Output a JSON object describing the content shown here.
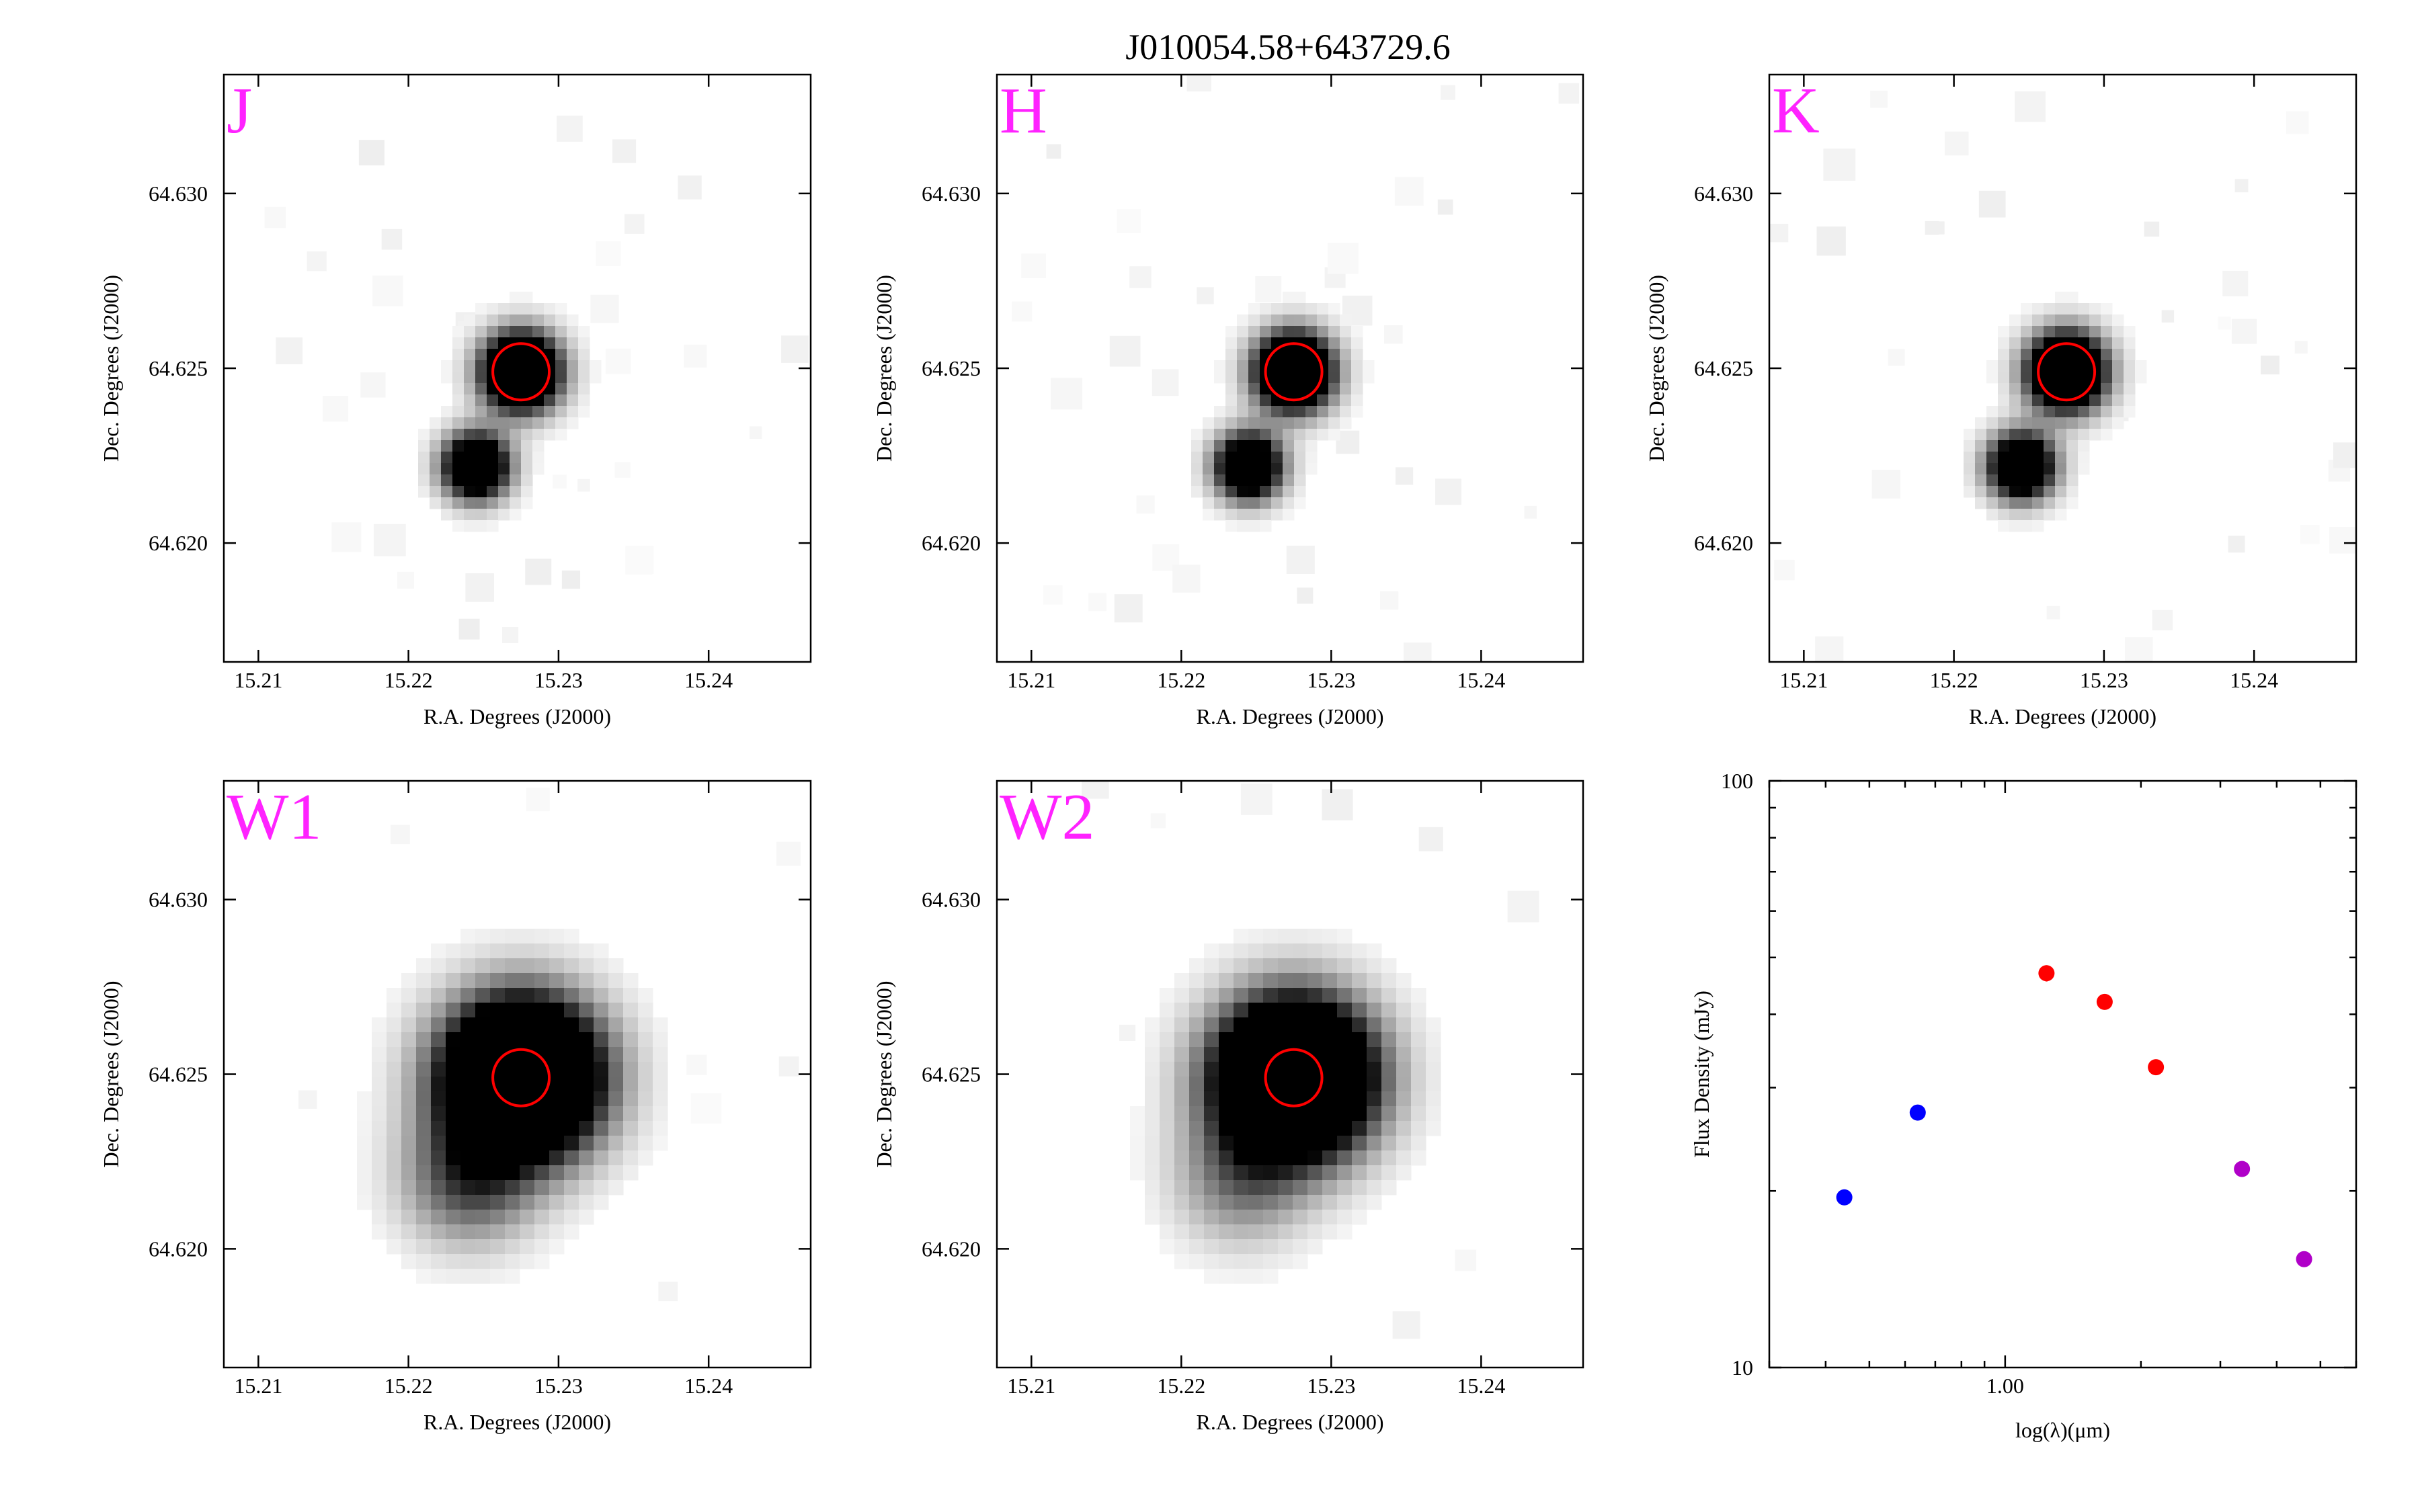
{
  "title": "J010054.58+643729.6",
  "colors": {
    "band_label": "#ff22ff",
    "aperture": "#ff0000",
    "sed_blue": "#0000ff",
    "sed_red": "#ff0000",
    "sed_purple": "#b000c8"
  },
  "chart_data": [
    {
      "type": "heatmap",
      "band": "J",
      "xlabel": "R.A. Degrees (J2000)",
      "ylabel": "Dec. Degrees (J2000)",
      "xlim": [
        15.2077,
        15.2468
      ],
      "ylim": [
        64.6166,
        64.6334
      ],
      "xticks": [
        "15.21",
        "15.22",
        "15.23",
        "15.24"
      ],
      "yticks": [
        "64.620",
        "64.625",
        "64.630"
      ],
      "sources": [
        {
          "ra": 15.2275,
          "dec": 64.6249,
          "sigma": 0.00075,
          "amp": 2.4
        },
        {
          "ra": 15.2245,
          "dec": 64.6222,
          "sigma": 0.00065,
          "amp": 1.9
        }
      ],
      "aperture": {
        "ra": 15.2275,
        "dec": 64.6249,
        "radius_arcsec": 3
      }
    },
    {
      "type": "heatmap",
      "band": "H",
      "xlabel": "R.A. Degrees (J2000)",
      "ylabel": "Dec. Degrees (J2000)",
      "xlim": [
        15.2077,
        15.2468
      ],
      "ylim": [
        64.6166,
        64.6334
      ],
      "xticks": [
        "15.21",
        "15.22",
        "15.23",
        "15.24"
      ],
      "yticks": [
        "64.620",
        "64.625",
        "64.630"
      ],
      "sources": [
        {
          "ra": 15.2275,
          "dec": 64.6249,
          "sigma": 0.00075,
          "amp": 2.4
        },
        {
          "ra": 15.2245,
          "dec": 64.6222,
          "sigma": 0.00065,
          "amp": 1.9
        }
      ],
      "aperture": {
        "ra": 15.2275,
        "dec": 64.6249,
        "radius_arcsec": 3
      }
    },
    {
      "type": "heatmap",
      "band": "K",
      "xlabel": "R.A. Degrees (J2000)",
      "ylabel": "Dec. Degrees (J2000)",
      "xlim": [
        15.2077,
        15.2468
      ],
      "ylim": [
        64.6166,
        64.6334
      ],
      "xticks": [
        "15.21",
        "15.22",
        "15.23",
        "15.24"
      ],
      "yticks": [
        "64.620",
        "64.625",
        "64.630"
      ],
      "sources": [
        {
          "ra": 15.2275,
          "dec": 64.6249,
          "sigma": 0.00075,
          "amp": 2.4
        },
        {
          "ra": 15.2245,
          "dec": 64.6222,
          "sigma": 0.00065,
          "amp": 1.9
        }
      ],
      "aperture": {
        "ra": 15.2275,
        "dec": 64.6249,
        "radius_arcsec": 3
      }
    },
    {
      "type": "heatmap",
      "band": "W1",
      "xlabel": "R.A. Degrees (J2000)",
      "ylabel": "Dec. Degrees (J2000)",
      "xlim": [
        15.2077,
        15.2468
      ],
      "ylim": [
        64.6166,
        64.6334
      ],
      "xticks": [
        "15.21",
        "15.22",
        "15.23",
        "15.24"
      ],
      "yticks": [
        "64.620",
        "64.625",
        "64.630"
      ],
      "sources": [
        {
          "ra": 15.2275,
          "dec": 64.6249,
          "sigma": 0.0015,
          "amp": 3.0
        },
        {
          "ra": 15.224,
          "dec": 64.622,
          "sigma": 0.0013,
          "amp": 0.7
        }
      ],
      "aperture": {
        "ra": 15.2275,
        "dec": 64.6249,
        "radius_arcsec": 3
      }
    },
    {
      "type": "heatmap",
      "band": "W2",
      "xlabel": "R.A. Degrees (J2000)",
      "ylabel": "Dec. Degrees (J2000)",
      "xlim": [
        15.2077,
        15.2468
      ],
      "ylim": [
        64.6166,
        64.6334
      ],
      "xticks": [
        "15.21",
        "15.22",
        "15.23",
        "15.24"
      ],
      "yticks": [
        "64.620",
        "64.625",
        "64.630"
      ],
      "sources": [
        {
          "ra": 15.2275,
          "dec": 64.6249,
          "sigma": 0.0015,
          "amp": 3.0
        },
        {
          "ra": 15.224,
          "dec": 64.622,
          "sigma": 0.0013,
          "amp": 0.5
        }
      ],
      "aperture": {
        "ra": 15.2275,
        "dec": 64.6249,
        "radius_arcsec": 3
      }
    },
    {
      "type": "scatter",
      "scale": "log-log",
      "xlabel": "log(λ)(μm)",
      "ylabel": "Flux Density (mJy)",
      "xlim": [
        0.3,
        6.0
      ],
      "ylim": [
        10,
        100
      ],
      "xticks": [
        {
          "value": 1.0,
          "label": "1.00"
        }
      ],
      "yticks": [
        {
          "value": 10,
          "label": "10"
        },
        {
          "value": 100,
          "label": "100"
        }
      ],
      "series": [
        {
          "color": "#0000ff",
          "points": [
            {
              "x": 0.44,
              "y": 19.5
            },
            {
              "x": 0.64,
              "y": 27.2
            }
          ]
        },
        {
          "color": "#ff0000",
          "points": [
            {
              "x": 1.235,
              "y": 47.0,
              "err": 1.5
            },
            {
              "x": 1.662,
              "y": 42.0,
              "err": 1.2
            },
            {
              "x": 2.159,
              "y": 32.5,
              "err": 1.0
            }
          ]
        },
        {
          "color": "#b000c8",
          "points": [
            {
              "x": 3.35,
              "y": 21.8
            },
            {
              "x": 4.6,
              "y": 15.3
            }
          ]
        }
      ]
    }
  ]
}
